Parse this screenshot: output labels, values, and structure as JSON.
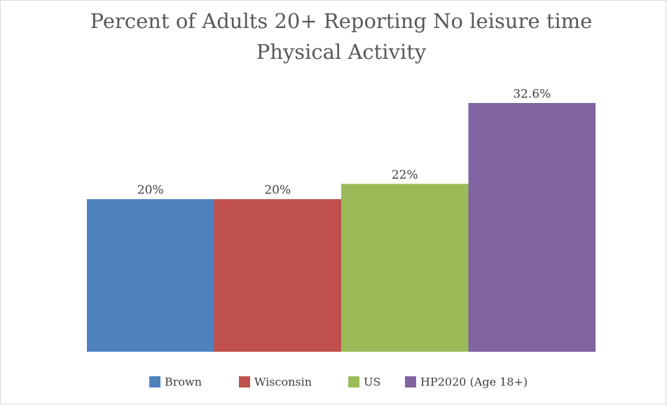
{
  "chart_data": {
    "type": "bar",
    "title": "Percent of Adults 20+ Reporting No leisure time Physical Activity",
    "title_lines": [
      "Percent of Adults 20+ Reporting No leisure time",
      "Physical Activity"
    ],
    "categories": [
      null
    ],
    "series": [
      {
        "name": "Brown",
        "color": "#4f81bd",
        "values": [
          20
        ],
        "value_labels": [
          "20%"
        ]
      },
      {
        "name": "Wisconsin",
        "color": "#c0504d",
        "values": [
          20
        ],
        "value_labels": [
          "20%"
        ]
      },
      {
        "name": "US",
        "color": "#9bbb59",
        "values": [
          22
        ],
        "value_labels": [
          "22%"
        ]
      },
      {
        "name": "HP2020 (Age 18+)",
        "color": "#8064a2",
        "values": [
          32.6
        ],
        "value_labels": [
          "32.6%"
        ]
      }
    ],
    "legend": "bottom"
  }
}
